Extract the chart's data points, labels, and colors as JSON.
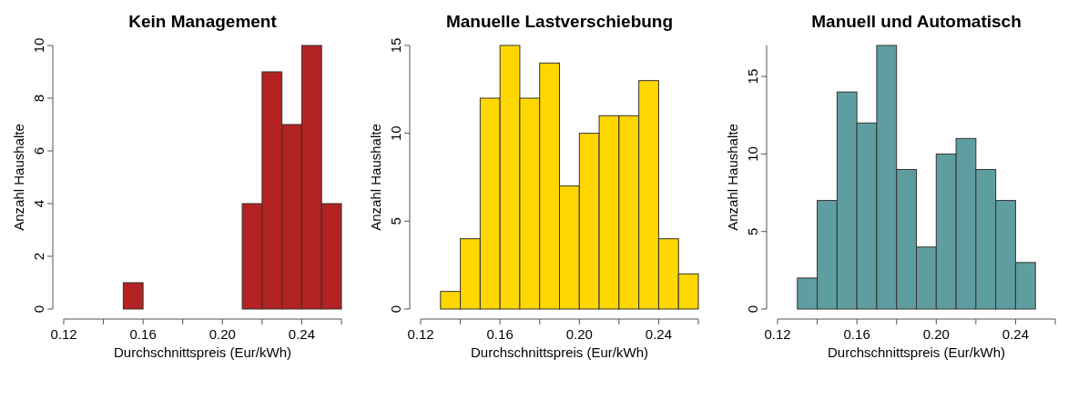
{
  "chart_data": [
    {
      "type": "histogram",
      "title": "Kein Management",
      "xlabel": "Durchschnittspreis (Eur/kWh)",
      "ylabel": "Anzahl Haushalte",
      "bins": [
        0.12,
        0.13,
        0.14,
        0.15,
        0.16,
        0.17,
        0.18,
        0.19,
        0.2,
        0.21,
        0.22,
        0.23,
        0.24,
        0.25,
        0.26
      ],
      "values": [
        0,
        0,
        0,
        1,
        0,
        0,
        0,
        0,
        0,
        4,
        9,
        7,
        10,
        4
      ],
      "color": "#b22222",
      "xlim": [
        0.12,
        0.26
      ],
      "xticks": [
        {
          "value": 0.12,
          "label": "0.12"
        },
        {
          "value": 0.14,
          "label": null
        },
        {
          "value": 0.16,
          "label": "0.16"
        },
        {
          "value": 0.18,
          "label": null
        },
        {
          "value": 0.2,
          "label": "0.20"
        },
        {
          "value": 0.22,
          "label": null
        },
        {
          "value": 0.24,
          "label": "0.24"
        },
        {
          "value": 0.26,
          "label": null
        }
      ],
      "ylim": [
        0,
        10
      ],
      "yticks": [
        0,
        2,
        4,
        6,
        8,
        10
      ],
      "grid": false
    },
    {
      "type": "histogram",
      "title": "Manuelle Lastverschiebung",
      "xlabel": "Durchschnittspreis (Eur/kWh)",
      "ylabel": "Anzahl Haushalte",
      "bins": [
        0.12,
        0.13,
        0.14,
        0.15,
        0.16,
        0.17,
        0.18,
        0.19,
        0.2,
        0.21,
        0.22,
        0.23,
        0.24,
        0.25,
        0.26
      ],
      "values": [
        0,
        1,
        4,
        12,
        15,
        12,
        14,
        7,
        10,
        11,
        11,
        13,
        4,
        2
      ],
      "color": "#ffd700",
      "xlim": [
        0.12,
        0.26
      ],
      "xticks": [
        {
          "value": 0.12,
          "label": "0.12"
        },
        {
          "value": 0.14,
          "label": null
        },
        {
          "value": 0.16,
          "label": "0.16"
        },
        {
          "value": 0.18,
          "label": null
        },
        {
          "value": 0.2,
          "label": "0.20"
        },
        {
          "value": 0.22,
          "label": null
        },
        {
          "value": 0.24,
          "label": "0.24"
        },
        {
          "value": 0.26,
          "label": null
        }
      ],
      "ylim": [
        0,
        15
      ],
      "yticks": [
        0,
        5,
        10,
        15
      ],
      "grid": false
    },
    {
      "type": "histogram",
      "title": "Manuell und Automatisch",
      "xlabel": "Durchschnittspreis (Eur/kWh)",
      "ylabel": "Anzahl Haushalte",
      "bins": [
        0.12,
        0.13,
        0.14,
        0.15,
        0.16,
        0.17,
        0.18,
        0.19,
        0.2,
        0.21,
        0.22,
        0.23,
        0.24,
        0.25,
        0.26
      ],
      "values": [
        0,
        2,
        7,
        14,
        12,
        17,
        9,
        4,
        10,
        11,
        9,
        7,
        3,
        0
      ],
      "color": "#5f9ea0",
      "xlim": [
        0.12,
        0.26
      ],
      "xticks": [
        {
          "value": 0.12,
          "label": "0.12"
        },
        {
          "value": 0.14,
          "label": null
        },
        {
          "value": 0.16,
          "label": "0.16"
        },
        {
          "value": 0.18,
          "label": null
        },
        {
          "value": 0.2,
          "label": "0.20"
        },
        {
          "value": 0.22,
          "label": null
        },
        {
          "value": 0.24,
          "label": "0.24"
        },
        {
          "value": 0.26,
          "label": null
        }
      ],
      "ylim": [
        0,
        17
      ],
      "yticks": [
        0,
        5,
        10,
        15
      ],
      "grid": false
    }
  ]
}
